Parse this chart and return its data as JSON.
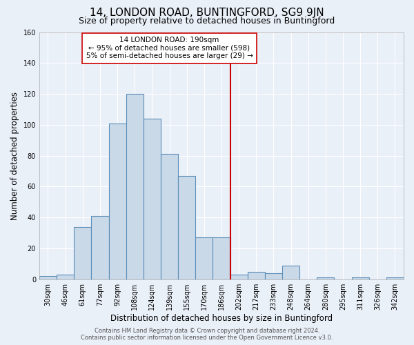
{
  "title": "14, LONDON ROAD, BUNTINGFORD, SG9 9JN",
  "subtitle": "Size of property relative to detached houses in Buntingford",
  "xlabel": "Distribution of detached houses by size in Buntingford",
  "ylabel": "Number of detached properties",
  "categories": [
    "30sqm",
    "46sqm",
    "61sqm",
    "77sqm",
    "92sqm",
    "108sqm",
    "124sqm",
    "139sqm",
    "155sqm",
    "170sqm",
    "186sqm",
    "202sqm",
    "217sqm",
    "233sqm",
    "248sqm",
    "264sqm",
    "280sqm",
    "295sqm",
    "311sqm",
    "326sqm",
    "342sqm"
  ],
  "values": [
    2,
    3,
    34,
    41,
    101,
    120,
    104,
    81,
    67,
    27,
    27,
    3,
    5,
    4,
    9,
    0,
    1,
    0,
    1,
    0,
    1
  ],
  "bar_color": "#c9d9e8",
  "bar_edge_color": "#5b8db8",
  "bar_linewidth": 0.8,
  "background_color": "#eaf0f8",
  "grid_color": "#ffffff",
  "vline_x_index": 10.5,
  "vline_color": "#cc0000",
  "annotation_text": "14 LONDON ROAD: 190sqm\n← 95% of detached houses are smaller (598)\n5% of semi-detached houses are larger (29) →",
  "annotation_box_color": "#ffffff",
  "annotation_box_edge_color": "#cc0000",
  "ylim": [
    0,
    160
  ],
  "yticks": [
    0,
    20,
    40,
    60,
    80,
    100,
    120,
    140,
    160
  ],
  "footer_line1": "Contains HM Land Registry data © Crown copyright and database right 2024.",
  "footer_line2": "Contains public sector information licensed under the Open Government Licence v3.0.",
  "title_fontsize": 11,
  "subtitle_fontsize": 9,
  "xlabel_fontsize": 8.5,
  "ylabel_fontsize": 8.5,
  "tick_fontsize": 7,
  "footer_fontsize": 6,
  "annot_fontsize": 7.5
}
